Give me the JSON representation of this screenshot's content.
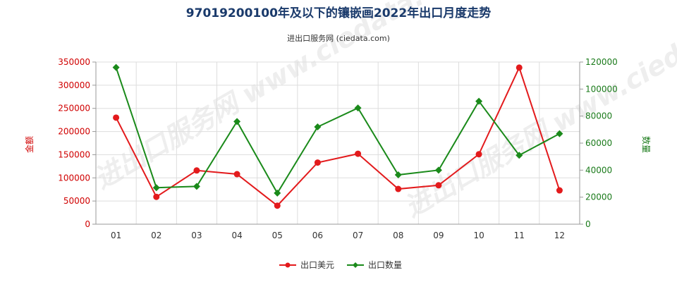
{
  "chart_data": {
    "type": "line",
    "title": "97019200100年及以下的镶嵌画2022年出口月度走势",
    "subtitle": "进出口服务网 (ciedata.com)",
    "watermark": "进出口服务网 www.ciedata.com",
    "categories": [
      "01",
      "02",
      "03",
      "04",
      "05",
      "06",
      "07",
      "08",
      "09",
      "10",
      "11",
      "12"
    ],
    "y_left": {
      "label": "金额",
      "lim": [
        0,
        350000
      ],
      "ticks": [
        0,
        50000,
        100000,
        150000,
        200000,
        250000,
        300000,
        350000
      ],
      "tick_labels": [
        "0",
        "50000",
        "100000",
        "150000",
        "200000",
        "250000",
        "300000",
        "350000"
      ],
      "color": "#d00000"
    },
    "y_right": {
      "label": "数量",
      "lim": [
        0,
        120000
      ],
      "ticks": [
        0,
        20000,
        40000,
        60000,
        80000,
        100000,
        120000
      ],
      "tick_labels": [
        "0",
        "20000",
        "40000",
        "60000",
        "80000",
        "100000",
        "120000"
      ],
      "color": "#1a7a1a"
    },
    "series": [
      {
        "name": "出口美元",
        "axis": "left",
        "color": "#e31a1c",
        "values": [
          230000,
          59000,
          116000,
          108000,
          40000,
          133000,
          152000,
          76000,
          84000,
          151000,
          338000,
          73000
        ]
      },
      {
        "name": "出口数量",
        "axis": "right",
        "color": "#1a8a1a",
        "values": [
          116000,
          27000,
          28000,
          76000,
          23000,
          72000,
          86000,
          36500,
          40000,
          91000,
          51000,
          67000
        ]
      }
    ],
    "grid": true,
    "legend_position": "bottom"
  }
}
